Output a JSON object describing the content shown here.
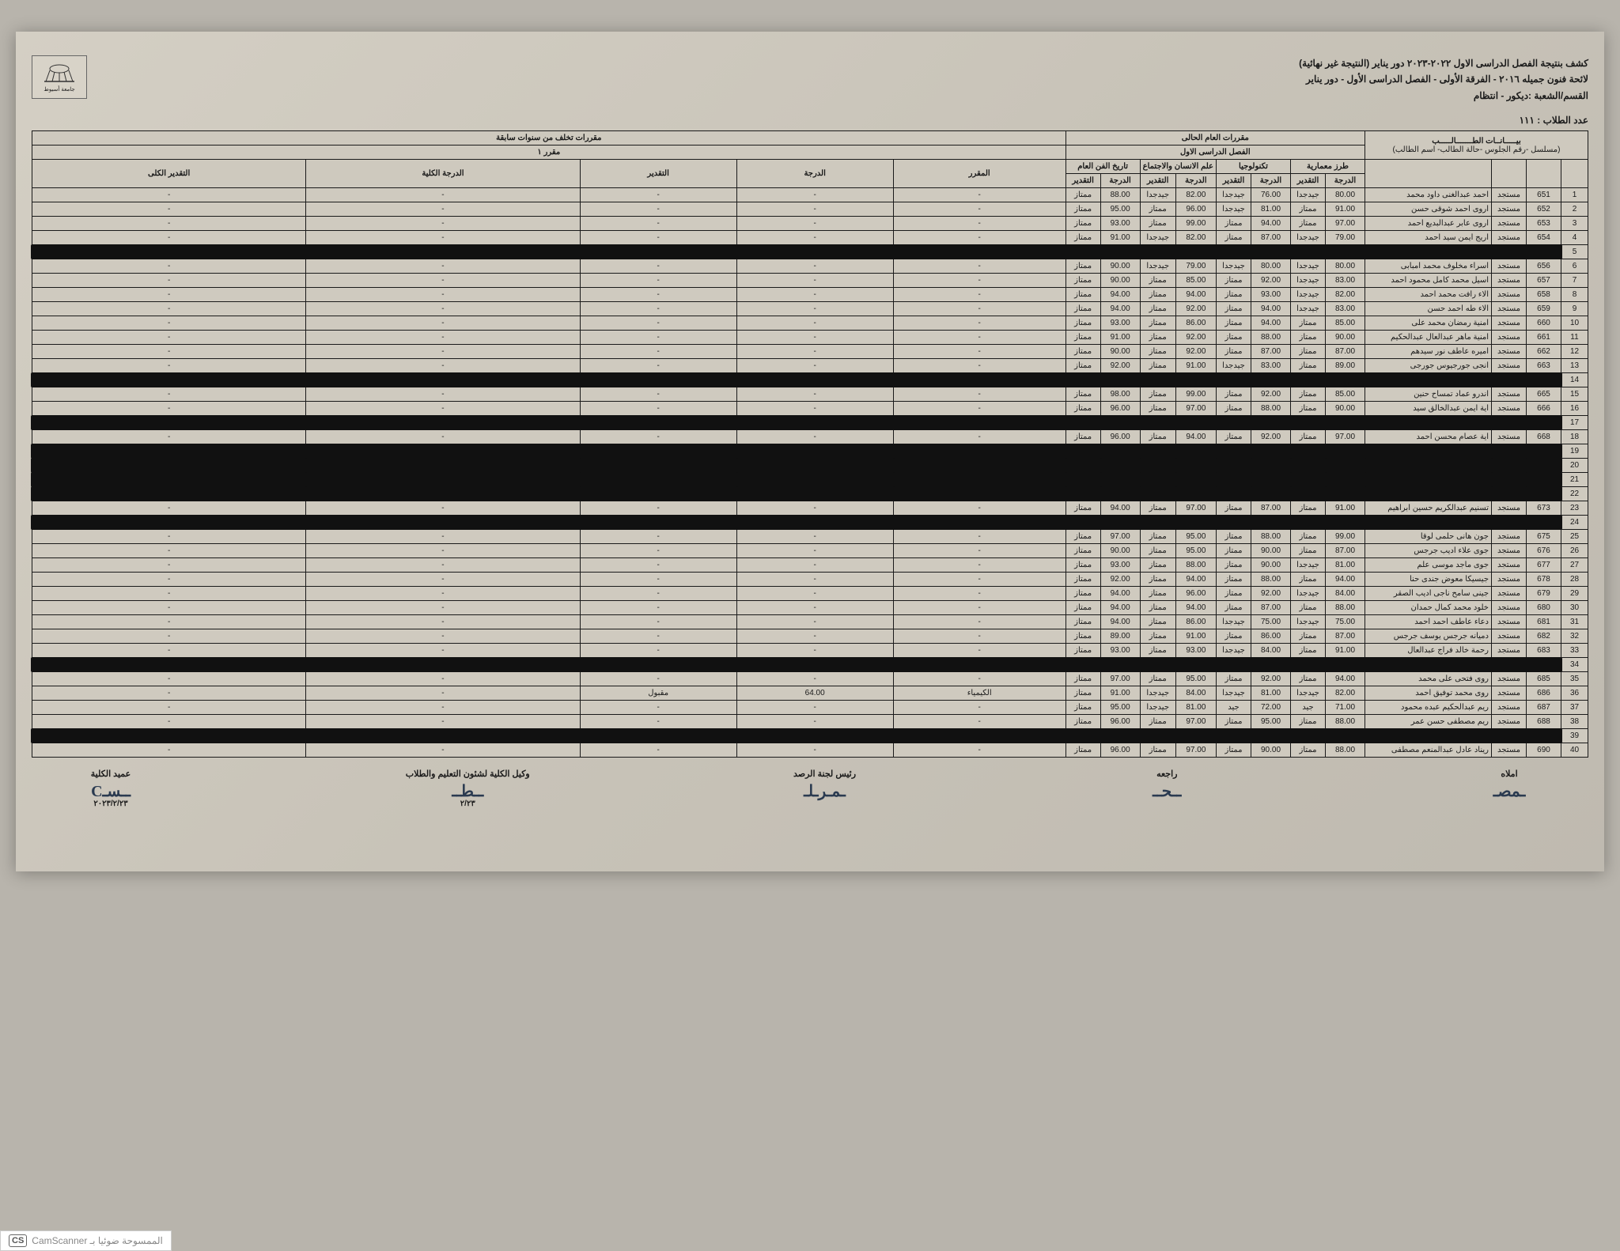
{
  "header": {
    "line1": "كشف بنتيجة الفصل الدراسى الاول ٢٠٢٢-٢٠٢٣ دور يناير  (النتيجة غير نهائية)",
    "line2": "لائحة فنون جميله ٢٠١٦ - الفرقة الأولى - الفصل الدراسى الأول - دور يناير",
    "line3": "القسم/الشعبة :ديكور - انتظام",
    "student_count_label": "عدد الطلاب : ١١١"
  },
  "logo_caption": "جامعة أسيوط",
  "table": {
    "group_headers": {
      "student_info": "بيـــــانــات الطـــــــالـــــب",
      "student_info_sub": "(مسلسل -رقم الجلوس -حالة الطالب- اسم الطالب)",
      "current_year": "مقررات العام الحالى",
      "semester1": "الفصل الدراسى الاول",
      "prev_years": "مقررات تخلف من سنوات سابقة",
      "course1_prev": "مقرر ١"
    },
    "subjects": [
      "طرز معمارية",
      "تكنولوجيا",
      "علم الانسان والاجتماع",
      "تاريخ الفن العام"
    ],
    "col_labels": {
      "score": "الدرجة",
      "grade": "التقدير",
      "course": "المقرر",
      "total_score": "الدرجة الكلية",
      "total_grade": "التقدير الكلى"
    },
    "rows": [
      {
        "n": 1,
        "id": "651",
        "status": "مستجد",
        "name": "احمد عبدالغنى داود محمد",
        "s": [
          [
            "80.00",
            "جيدجدا"
          ],
          [
            "76.00",
            "جيدجدا"
          ],
          [
            "82.00",
            "جيدجدا"
          ],
          [
            "88.00",
            "ممتاز"
          ]
        ],
        "prev": null,
        "red": false
      },
      {
        "n": 2,
        "id": "652",
        "status": "مستجد",
        "name": "اروى احمد شوقى حسن",
        "s": [
          [
            "91.00",
            "ممتاز"
          ],
          [
            "81.00",
            "جيدجدا"
          ],
          [
            "96.00",
            "ممتاز"
          ],
          [
            "95.00",
            "ممتاز"
          ]
        ],
        "prev": null,
        "red": false
      },
      {
        "n": 3,
        "id": "653",
        "status": "مستجد",
        "name": "اروى عابر عبدالبديع احمد",
        "s": [
          [
            "97.00",
            "ممتاز"
          ],
          [
            "94.00",
            "ممتاز"
          ],
          [
            "99.00",
            "ممتاز"
          ],
          [
            "93.00",
            "ممتاز"
          ]
        ],
        "prev": null,
        "red": false
      },
      {
        "n": 4,
        "id": "654",
        "status": "مستجد",
        "name": "اريج ايمن سيد احمد",
        "s": [
          [
            "79.00",
            "جيدجدا"
          ],
          [
            "87.00",
            "ممتاز"
          ],
          [
            "82.00",
            "جيدجدا"
          ],
          [
            "91.00",
            "ممتاز"
          ]
        ],
        "prev": null,
        "red": false
      },
      {
        "n": 5,
        "id": "",
        "status": "",
        "name": "",
        "s": [
          [
            "",
            ""
          ],
          [
            "",
            ""
          ],
          [
            "",
            ""
          ],
          [
            "",
            ""
          ]
        ],
        "prev": null,
        "red": true
      },
      {
        "n": 6,
        "id": "656",
        "status": "مستجد",
        "name": "اسراء مخلوف محمد امبابى",
        "s": [
          [
            "80.00",
            "جيدجدا"
          ],
          [
            "80.00",
            "جيدجدا"
          ],
          [
            "79.00",
            "جيدجدا"
          ],
          [
            "90.00",
            "ممتاز"
          ]
        ],
        "prev": null,
        "red": false
      },
      {
        "n": 7,
        "id": "657",
        "status": "مستجد",
        "name": "اسيل محمد كامل محمود احمد",
        "s": [
          [
            "83.00",
            "جيدجدا"
          ],
          [
            "92.00",
            "ممتاز"
          ],
          [
            "85.00",
            "ممتاز"
          ],
          [
            "90.00",
            "ممتاز"
          ]
        ],
        "prev": null,
        "red": false
      },
      {
        "n": 8,
        "id": "658",
        "status": "مستجد",
        "name": "الاء رافت محمد احمد",
        "s": [
          [
            "82.00",
            "جيدجدا"
          ],
          [
            "93.00",
            "ممتاز"
          ],
          [
            "94.00",
            "ممتاز"
          ],
          [
            "94.00",
            "ممتاز"
          ]
        ],
        "prev": null,
        "red": false
      },
      {
        "n": 9,
        "id": "659",
        "status": "مستجد",
        "name": "الاء طه احمد حسن",
        "s": [
          [
            "83.00",
            "جيدجدا"
          ],
          [
            "94.00",
            "ممتاز"
          ],
          [
            "92.00",
            "ممتاز"
          ],
          [
            "94.00",
            "ممتاز"
          ]
        ],
        "prev": null,
        "red": false
      },
      {
        "n": 10,
        "id": "660",
        "status": "مستجد",
        "name": "امنية رمضان محمد على",
        "s": [
          [
            "85.00",
            "ممتاز"
          ],
          [
            "94.00",
            "ممتاز"
          ],
          [
            "86.00",
            "ممتاز"
          ],
          [
            "93.00",
            "ممتاز"
          ]
        ],
        "prev": null,
        "red": false
      },
      {
        "n": 11,
        "id": "661",
        "status": "مستجد",
        "name": "امنية ماهر عبدالعال عبدالحكيم",
        "s": [
          [
            "90.00",
            "ممتاز"
          ],
          [
            "88.00",
            "ممتاز"
          ],
          [
            "92.00",
            "ممتاز"
          ],
          [
            "91.00",
            "ممتاز"
          ]
        ],
        "prev": null,
        "red": false
      },
      {
        "n": 12,
        "id": "662",
        "status": "مستجد",
        "name": "اميره عاطف نور سيدهم",
        "s": [
          [
            "87.00",
            "ممتاز"
          ],
          [
            "87.00",
            "ممتاز"
          ],
          [
            "92.00",
            "ممتاز"
          ],
          [
            "90.00",
            "ممتاز"
          ]
        ],
        "prev": null,
        "red": false
      },
      {
        "n": 13,
        "id": "663",
        "status": "مستجد",
        "name": "انجى جورجيوس جورجى",
        "s": [
          [
            "89.00",
            "ممتاز"
          ],
          [
            "83.00",
            "جيدجدا"
          ],
          [
            "91.00",
            "ممتاز"
          ],
          [
            "92.00",
            "ممتاز"
          ]
        ],
        "prev": null,
        "red": false
      },
      {
        "n": 14,
        "id": "",
        "status": "",
        "name": "",
        "s": [
          [
            "",
            ""
          ],
          [
            "",
            ""
          ],
          [
            "",
            ""
          ],
          [
            "",
            ""
          ]
        ],
        "prev": null,
        "red": true
      },
      {
        "n": 15,
        "id": "665",
        "status": "مستجد",
        "name": "اندرو عماد تمساح حنين",
        "s": [
          [
            "85.00",
            "ممتاز"
          ],
          [
            "92.00",
            "ممتاز"
          ],
          [
            "99.00",
            "ممتاز"
          ],
          [
            "98.00",
            "ممتاز"
          ]
        ],
        "prev": null,
        "red": false
      },
      {
        "n": 16,
        "id": "666",
        "status": "مستجد",
        "name": "اية ايمن عبدالخالق سيد",
        "s": [
          [
            "90.00",
            "ممتاز"
          ],
          [
            "88.00",
            "ممتاز"
          ],
          [
            "97.00",
            "ممتاز"
          ],
          [
            "96.00",
            "ممتاز"
          ]
        ],
        "prev": null,
        "red": false
      },
      {
        "n": 17,
        "id": "",
        "status": "",
        "name": "",
        "s": [
          [
            "",
            ""
          ],
          [
            "",
            ""
          ],
          [
            "",
            ""
          ],
          [
            "",
            ""
          ]
        ],
        "prev": null,
        "red": true
      },
      {
        "n": 18,
        "id": "668",
        "status": "مستجد",
        "name": "اية عصام محسن احمد",
        "s": [
          [
            "97.00",
            "ممتاز"
          ],
          [
            "92.00",
            "ممتاز"
          ],
          [
            "94.00",
            "ممتاز"
          ],
          [
            "96.00",
            "ممتاز"
          ]
        ],
        "prev": null,
        "red": false
      },
      {
        "n": 19,
        "id": "",
        "status": "",
        "name": "",
        "s": [
          [
            "",
            ""
          ],
          [
            "",
            ""
          ],
          [
            "",
            ""
          ],
          [
            "",
            ""
          ]
        ],
        "prev": null,
        "red": true
      },
      {
        "n": 20,
        "id": "",
        "status": "",
        "name": "",
        "s": [
          [
            "",
            ""
          ],
          [
            "",
            ""
          ],
          [
            "",
            ""
          ],
          [
            "",
            ""
          ]
        ],
        "prev": null,
        "red": true
      },
      {
        "n": 21,
        "id": "",
        "status": "",
        "name": "",
        "s": [
          [
            "",
            ""
          ],
          [
            "",
            ""
          ],
          [
            "",
            ""
          ],
          [
            "",
            ""
          ]
        ],
        "prev": null,
        "red": true
      },
      {
        "n": 22,
        "id": "",
        "status": "",
        "name": "",
        "s": [
          [
            "",
            ""
          ],
          [
            "",
            ""
          ],
          [
            "",
            ""
          ],
          [
            "",
            ""
          ]
        ],
        "prev": null,
        "red": true
      },
      {
        "n": 23,
        "id": "673",
        "status": "مستجد",
        "name": "تسنيم عبدالكريم حسين ابراهيم",
        "s": [
          [
            "91.00",
            "ممتاز"
          ],
          [
            "87.00",
            "ممتاز"
          ],
          [
            "97.00",
            "ممتاز"
          ],
          [
            "94.00",
            "ممتاز"
          ]
        ],
        "prev": null,
        "red": false
      },
      {
        "n": 24,
        "id": "",
        "status": "",
        "name": "",
        "s": [
          [
            "",
            ""
          ],
          [
            "",
            ""
          ],
          [
            "",
            ""
          ],
          [
            "",
            ""
          ]
        ],
        "prev": null,
        "red": true
      },
      {
        "n": 25,
        "id": "675",
        "status": "مستجد",
        "name": "جون هانى حلمى لوقا",
        "s": [
          [
            "99.00",
            "ممتاز"
          ],
          [
            "88.00",
            "ممتاز"
          ],
          [
            "95.00",
            "ممتاز"
          ],
          [
            "97.00",
            "ممتاز"
          ]
        ],
        "prev": null,
        "red": false
      },
      {
        "n": 26,
        "id": "676",
        "status": "مستجد",
        "name": "جوى علاء اديب جرجس",
        "s": [
          [
            "87.00",
            "ممتاز"
          ],
          [
            "90.00",
            "ممتاز"
          ],
          [
            "95.00",
            "ممتاز"
          ],
          [
            "90.00",
            "ممتاز"
          ]
        ],
        "prev": null,
        "red": false
      },
      {
        "n": 27,
        "id": "677",
        "status": "مستجد",
        "name": "جوى ماجد موسى علم",
        "s": [
          [
            "81.00",
            "جيدجدا"
          ],
          [
            "90.00",
            "ممتاز"
          ],
          [
            "88.00",
            "ممتاز"
          ],
          [
            "93.00",
            "ممتاز"
          ]
        ],
        "prev": null,
        "red": false
      },
      {
        "n": 28,
        "id": "678",
        "status": "مستجد",
        "name": "جيسيكا معوض جندى حنا",
        "s": [
          [
            "94.00",
            "ممتاز"
          ],
          [
            "88.00",
            "ممتاز"
          ],
          [
            "94.00",
            "ممتاز"
          ],
          [
            "92.00",
            "ممتاز"
          ]
        ],
        "prev": null,
        "red": false
      },
      {
        "n": 29,
        "id": "679",
        "status": "مستجد",
        "name": "جينى سامح ناجى اديب الصقر",
        "s": [
          [
            "84.00",
            "جيدجدا"
          ],
          [
            "92.00",
            "ممتاز"
          ],
          [
            "96.00",
            "ممتاز"
          ],
          [
            "94.00",
            "ممتاز"
          ]
        ],
        "prev": null,
        "red": false
      },
      {
        "n": 30,
        "id": "680",
        "status": "مستجد",
        "name": "خلود محمد كمال حمدان",
        "s": [
          [
            "88.00",
            "ممتاز"
          ],
          [
            "87.00",
            "ممتاز"
          ],
          [
            "94.00",
            "ممتاز"
          ],
          [
            "94.00",
            "ممتاز"
          ]
        ],
        "prev": null,
        "red": false
      },
      {
        "n": 31,
        "id": "681",
        "status": "مستجد",
        "name": "دعاء عاطف احمد احمد",
        "s": [
          [
            "75.00",
            "جيدجدا"
          ],
          [
            "75.00",
            "جيدجدا"
          ],
          [
            "86.00",
            "ممتاز"
          ],
          [
            "94.00",
            "ممتاز"
          ]
        ],
        "prev": null,
        "red": false
      },
      {
        "n": 32,
        "id": "682",
        "status": "مستجد",
        "name": "دميانه جرجس يوسف جرجس",
        "s": [
          [
            "87.00",
            "ممتاز"
          ],
          [
            "86.00",
            "ممتاز"
          ],
          [
            "91.00",
            "ممتاز"
          ],
          [
            "89.00",
            "ممتاز"
          ]
        ],
        "prev": null,
        "red": false
      },
      {
        "n": 33,
        "id": "683",
        "status": "مستجد",
        "name": "رحمة خالد فراج عبدالعال",
        "s": [
          [
            "91.00",
            "ممتاز"
          ],
          [
            "84.00",
            "جيدجدا"
          ],
          [
            "93.00",
            "ممتاز"
          ],
          [
            "93.00",
            "ممتاز"
          ]
        ],
        "prev": null,
        "red": false
      },
      {
        "n": 34,
        "id": "",
        "status": "",
        "name": "",
        "s": [
          [
            "",
            ""
          ],
          [
            "",
            ""
          ],
          [
            "",
            ""
          ],
          [
            "",
            ""
          ]
        ],
        "prev": null,
        "red": true
      },
      {
        "n": 35,
        "id": "685",
        "status": "مستجد",
        "name": "روى فتحى على محمد",
        "s": [
          [
            "94.00",
            "ممتاز"
          ],
          [
            "92.00",
            "ممتاز"
          ],
          [
            "95.00",
            "ممتاز"
          ],
          [
            "97.00",
            "ممتاز"
          ]
        ],
        "prev": null,
        "red": false
      },
      {
        "n": 36,
        "id": "686",
        "status": "مستجد",
        "name": "روى محمد توفيق احمد",
        "s": [
          [
            "82.00",
            "جيدجدا"
          ],
          [
            "81.00",
            "جيدجدا"
          ],
          [
            "84.00",
            "جيدجدا"
          ],
          [
            "91.00",
            "ممتاز"
          ]
        ],
        "prev": {
          "course": "الكيمياء",
          "score": "64.00",
          "grade": "مقبول"
        },
        "red": false
      },
      {
        "n": 37,
        "id": "687",
        "status": "مستجد",
        "name": "ريم عبدالحكيم عبده محمود",
        "s": [
          [
            "71.00",
            "جيد"
          ],
          [
            "72.00",
            "جيد"
          ],
          [
            "81.00",
            "جيدجدا"
          ],
          [
            "95.00",
            "ممتاز"
          ]
        ],
        "prev": null,
        "red": false
      },
      {
        "n": 38,
        "id": "688",
        "status": "مستجد",
        "name": "ريم مصطفى حسن عمر",
        "s": [
          [
            "88.00",
            "ممتاز"
          ],
          [
            "95.00",
            "ممتاز"
          ],
          [
            "97.00",
            "ممتاز"
          ],
          [
            "96.00",
            "ممتاز"
          ]
        ],
        "prev": null,
        "red": false
      },
      {
        "n": 39,
        "id": "",
        "status": "",
        "name": "",
        "s": [
          [
            "",
            ""
          ],
          [
            "",
            ""
          ],
          [
            "",
            ""
          ],
          [
            "",
            ""
          ]
        ],
        "prev": null,
        "red": true
      },
      {
        "n": 40,
        "id": "690",
        "status": "مستجد",
        "name": "ريناد عادل عبدالمنعم مصطفى",
        "s": [
          [
            "88.00",
            "ممتاز"
          ],
          [
            "90.00",
            "ممتاز"
          ],
          [
            "97.00",
            "ممتاز"
          ],
          [
            "96.00",
            "ممتاز"
          ]
        ],
        "prev": null,
        "red": false
      }
    ]
  },
  "footer": {
    "roles": [
      "املاه",
      "راجعه",
      "رئيس لجنة الرصد",
      "وكيل الكلية لشئون التعليم والطلاب",
      "عميد الكلية"
    ],
    "date_note": "٢٠٢٣/٢/٢٣"
  },
  "camscanner": {
    "badge": "CS",
    "text": "CamScanner الممسوحة ضوئيا بـ"
  },
  "style": {
    "paper_bg": "#cfcabf",
    "border_color": "#1a1a1a",
    "redaction_color": "#0d0d0d",
    "font_size_body": 10,
    "font_size_header": 12
  }
}
